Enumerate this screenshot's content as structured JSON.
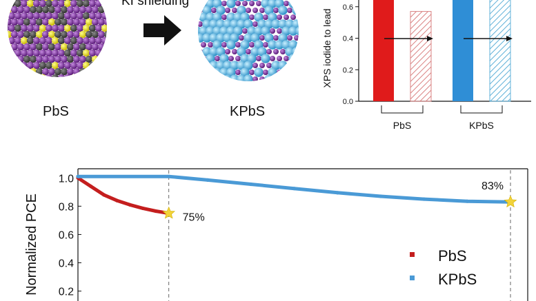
{
  "schematic": {
    "arrow_caption": "KI shielding",
    "left_label": "PbS",
    "right_label": "KPbS",
    "colors": {
      "lead": "#7a2a96",
      "sulfur": "#555555",
      "iodide": "#e8e020",
      "potassium": "#4fb3e6"
    }
  },
  "chart_data": [
    {
      "type": "bar",
      "ylabel": "XPS iodide to lead",
      "ylim": [
        0,
        0.8
      ],
      "yticks": [
        "0.0",
        "0.2",
        "0.4",
        "0.6"
      ],
      "categories": [
        "PbS",
        "KPbS"
      ],
      "series": [
        {
          "values": [
            0.78,
            0.78
          ],
          "fill": "solid",
          "colors": [
            "#e01b1b",
            "#2f8ed6"
          ]
        },
        {
          "values": [
            0.57,
            0.72
          ],
          "fill": "hatched",
          "colors": [
            "#d98080",
            "#5fb0d8"
          ]
        }
      ],
      "annotation": "arrow between paired bars"
    },
    {
      "type": "line",
      "ylabel": "Normalized PCE",
      "xlabel": "",
      "ylim": [
        0.13,
        1.05
      ],
      "yticks": [
        "1.0",
        "0.8",
        "0.6",
        "0.4",
        "0.2"
      ],
      "legend_position": "bottom-right",
      "series": [
        {
          "name": "PbS",
          "color": "#c41e1e",
          "points": [
            [
              0,
              1.0
            ],
            [
              0.03,
              0.94
            ],
            [
              0.06,
              0.88
            ],
            [
              0.09,
              0.84
            ],
            [
              0.12,
              0.81
            ],
            [
              0.15,
              0.785
            ],
            [
              0.18,
              0.765
            ],
            [
              0.21,
              0.75
            ]
          ]
        },
        {
          "name": "KPbS",
          "color": "#4a9ad6",
          "points": [
            [
              0,
              1.01
            ],
            [
              0.21,
              1.01
            ],
            [
              0.3,
              0.985
            ],
            [
              0.4,
              0.955
            ],
            [
              0.5,
              0.925
            ],
            [
              0.6,
              0.895
            ],
            [
              0.7,
              0.87
            ],
            [
              0.8,
              0.85
            ],
            [
              0.9,
              0.835
            ],
            [
              1.0,
              0.83
            ]
          ]
        }
      ],
      "markers": [
        {
          "x": 0.21,
          "y": 0.75,
          "label": "75%"
        },
        {
          "x": 1.0,
          "y": 0.83,
          "label": "83%"
        }
      ]
    }
  ]
}
